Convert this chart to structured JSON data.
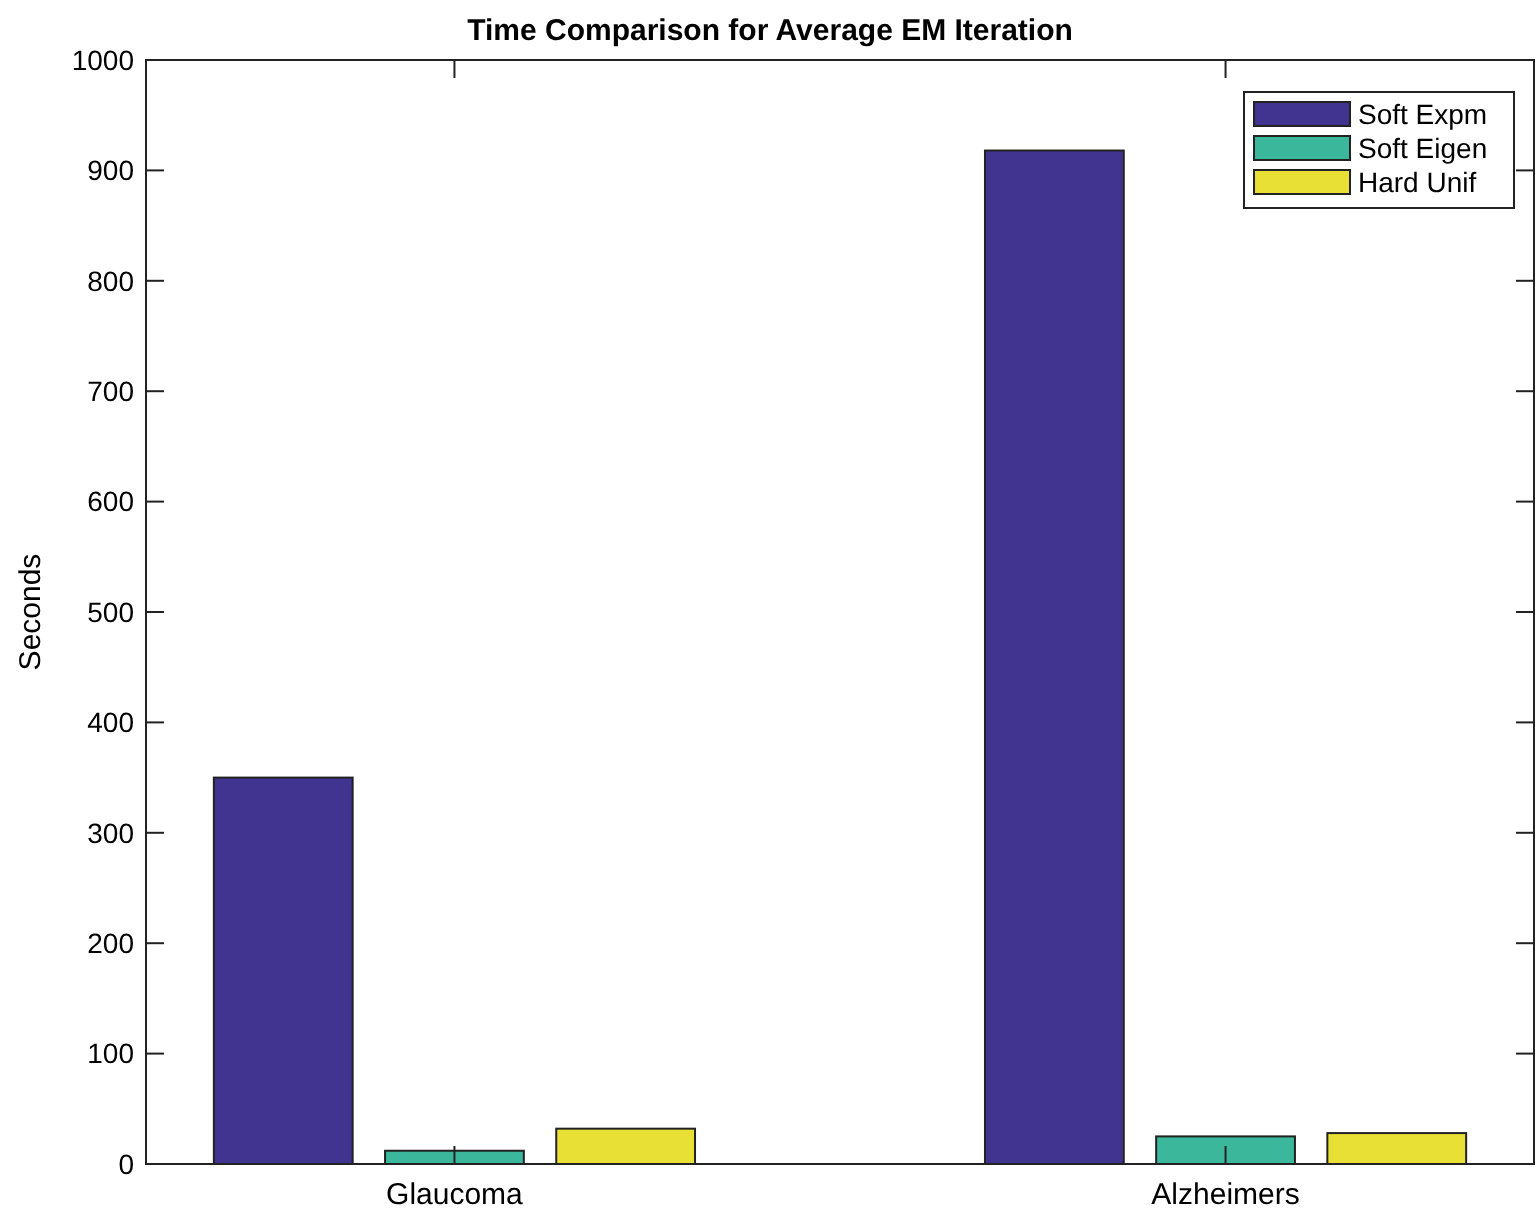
{
  "chart_data": {
    "type": "bar",
    "title": "Time Comparison for Average EM Iteration",
    "ylabel": "Seconds",
    "categories": [
      "Glaucoma",
      "Alzheimers"
    ],
    "series": [
      {
        "name": "Soft Expm",
        "color": "#403490",
        "values": [
          350,
          918
        ]
      },
      {
        "name": "Soft Eigen",
        "color": "#3bb89c",
        "values": [
          12,
          25
        ]
      },
      {
        "name": "Hard Unif",
        "color": "#e8e035",
        "values": [
          32,
          28
        ]
      }
    ],
    "ylim": [
      0,
      1000
    ],
    "yticks": [
      0,
      100,
      200,
      300,
      400,
      500,
      600,
      700,
      800,
      900,
      1000
    ],
    "grid": false,
    "legend": "top right"
  }
}
